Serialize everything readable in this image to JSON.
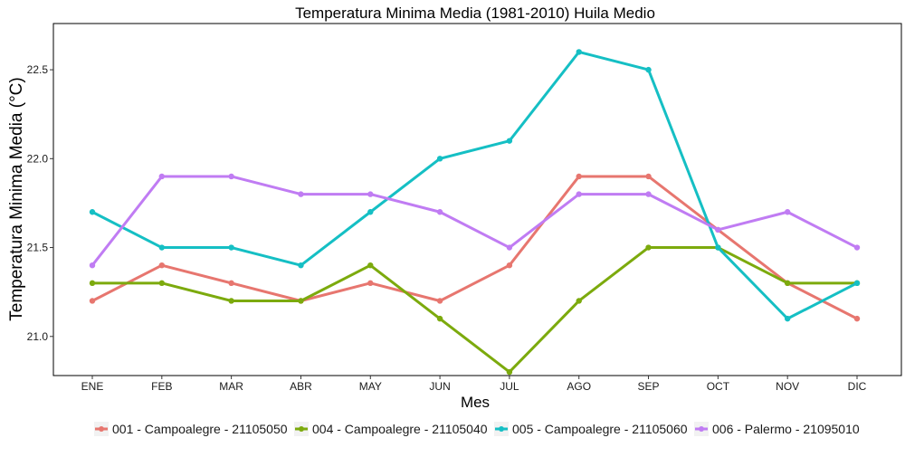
{
  "chart_data": {
    "type": "line",
    "title": "Temperatura Minima Media (1981-2010)  Huila Medio",
    "xlabel": "Mes",
    "ylabel": "Temperatura Minima Media  (°C)",
    "categories": [
      "ENE",
      "FEB",
      "MAR",
      "ABR",
      "MAY",
      "JUN",
      "JUL",
      "AGO",
      "SEP",
      "OCT",
      "NOV",
      "DIC"
    ],
    "ylim": [
      20.78,
      22.76
    ],
    "yticks": [
      "21.0",
      "21.5",
      "22.0",
      "22.5"
    ],
    "grid": false,
    "legend_position": "bottom",
    "series": [
      {
        "name": "001 - Campoalegre - 21105050",
        "color": "#E7766F",
        "values": [
          21.2,
          21.4,
          21.3,
          21.2,
          21.3,
          21.2,
          21.4,
          21.9,
          21.9,
          21.6,
          21.3,
          21.1
        ]
      },
      {
        "name": "004 - Campoalegre - 21105040",
        "color": "#7CAA0D",
        "values": [
          21.3,
          21.3,
          21.2,
          21.2,
          21.4,
          21.1,
          20.8,
          21.2,
          21.5,
          21.5,
          21.3,
          21.3
        ]
      },
      {
        "name": "005 - Campoalegre - 21105060",
        "color": "#15BFC4",
        "values": [
          21.7,
          21.5,
          21.5,
          21.4,
          21.7,
          22.0,
          22.1,
          22.6,
          22.5,
          21.5,
          21.1,
          21.3
        ]
      },
      {
        "name": "006 - Palermo - 21095010",
        "color": "#C07CF3",
        "values": [
          21.4,
          21.9,
          21.9,
          21.8,
          21.8,
          21.7,
          21.5,
          21.8,
          21.8,
          21.6,
          21.7,
          21.5
        ]
      }
    ]
  }
}
